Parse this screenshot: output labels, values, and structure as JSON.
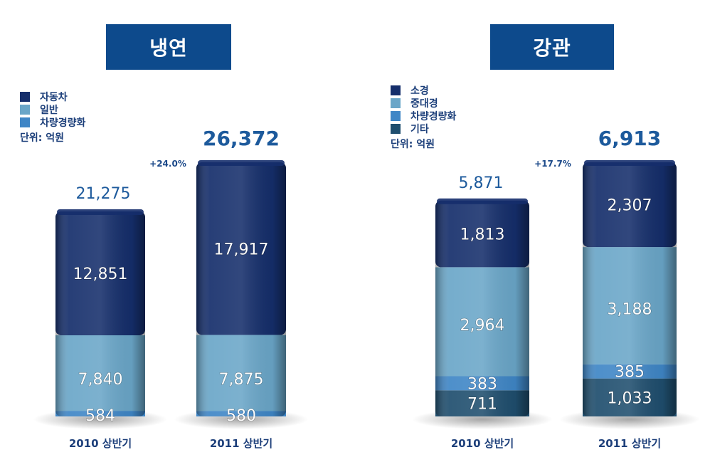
{
  "colors": {
    "title_bg": "#0d4a8c",
    "navy": "#152e6b",
    "light_blue": "#6aa6c8",
    "mid_blue": "#3f86c6",
    "dark_teal": "#1f4e6e",
    "total_text": "#1d5a9c"
  },
  "chart_data": [
    {
      "type": "bar",
      "stacked": true,
      "title": "냉연",
      "unit": "단위: 억원",
      "categories": [
        "2010 상반기",
        "2011 상반기"
      ],
      "series": [
        {
          "name": "자동차",
          "values": [
            12851,
            17917
          ],
          "color": "#152e6b"
        },
        {
          "name": "일반",
          "values": [
            7840,
            7875
          ],
          "color": "#6aa6c8"
        },
        {
          "name": "차량경량화",
          "values": [
            584,
            580
          ],
          "color": "#3f86c6"
        }
      ],
      "totals": [
        21275,
        26372
      ],
      "growth": "+24.0%",
      "value_labels": {
        "자동차": [
          "12,851",
          "17,917"
        ],
        "일반": [
          "7,840",
          "7,875"
        ],
        "차량경량화": [
          "584",
          "580"
        ]
      },
      "total_labels": [
        "21,275",
        "26,372"
      ]
    },
    {
      "type": "bar",
      "stacked": true,
      "title": "강관",
      "unit": "단위: 억원",
      "categories": [
        "2010 상반기",
        "2011 상반기"
      ],
      "series": [
        {
          "name": "소경",
          "values": [
            1813,
            2307
          ],
          "color": "#152e6b"
        },
        {
          "name": "중대경",
          "values": [
            2964,
            3188
          ],
          "color": "#6aa6c8"
        },
        {
          "name": "차량경량화",
          "values": [
            383,
            385
          ],
          "color": "#3f86c6"
        },
        {
          "name": "기타",
          "values": [
            711,
            1033
          ],
          "color": "#1f4e6e"
        }
      ],
      "totals": [
        5871,
        6913
      ],
      "growth": "+17.7%",
      "value_labels": {
        "소경": [
          "1,813",
          "2,307"
        ],
        "중대경": [
          "2,964",
          "3,188"
        ],
        "차량경량화": [
          "383",
          "385"
        ],
        "기타": [
          "711",
          "1,033"
        ]
      },
      "total_labels": [
        "5,871",
        "6,913"
      ]
    }
  ]
}
